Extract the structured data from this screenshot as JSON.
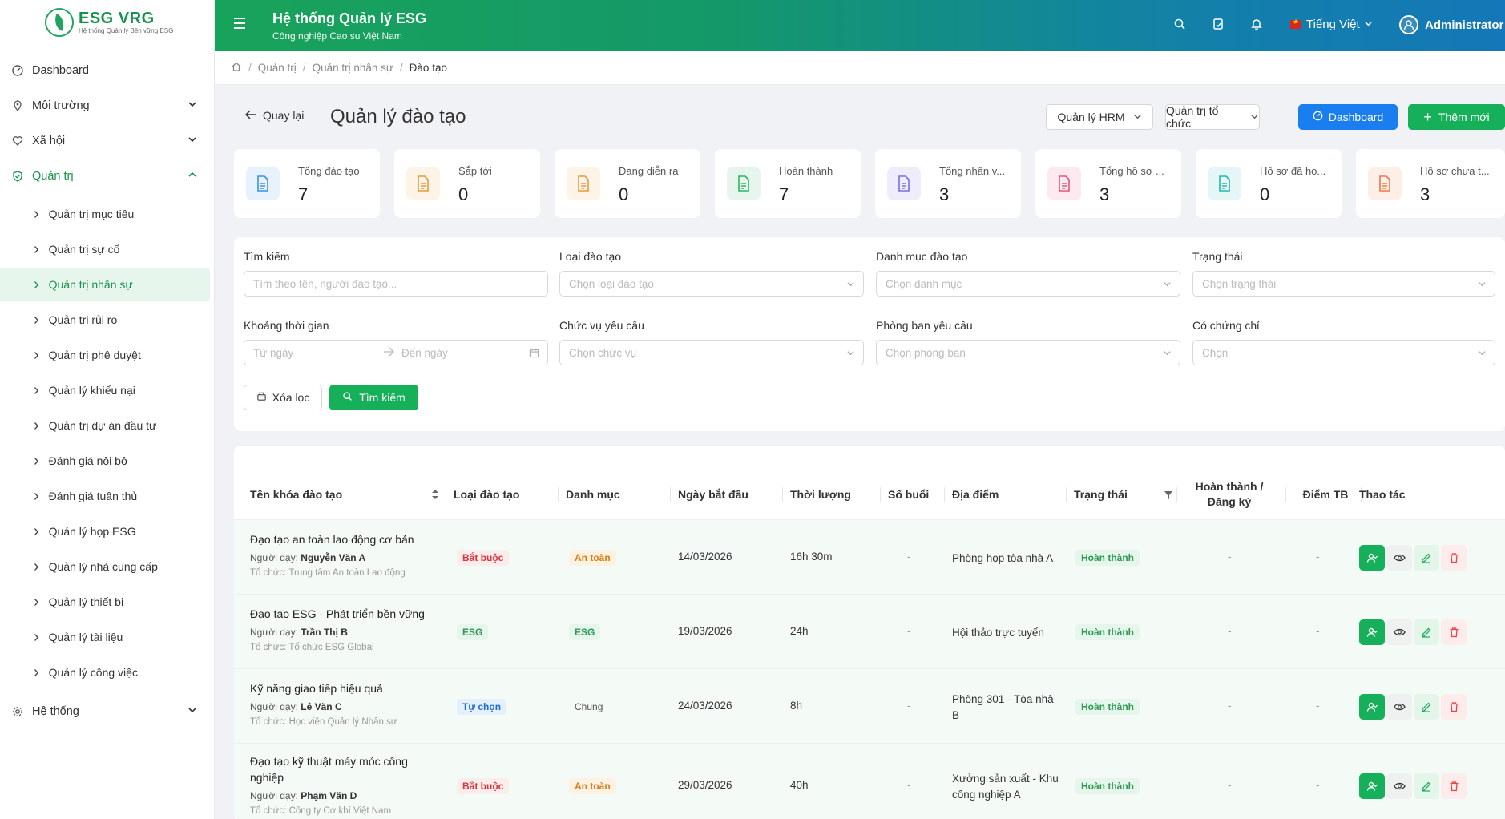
{
  "sidebar": {
    "logo_title": "ESG VRG",
    "logo_sub": "Hệ thống Quản lý Bền vững ESG",
    "top_items": [
      {
        "label": "Dashboard"
      },
      {
        "label": "Môi trường"
      },
      {
        "label": "Xã hội"
      },
      {
        "label": "Quản trị"
      },
      {
        "label": "Hệ thống"
      }
    ],
    "sub_items": [
      "Quản trị mục tiêu",
      "Quản trị sự cố",
      "Quản trị nhân sự",
      "Quản trị rủi ro",
      "Quản trị phê duyệt",
      "Quản lý khiếu nại",
      "Quản trị dự án đầu tư",
      "Đánh giá nội bộ",
      "Đánh giá tuân thủ",
      "Quản lý họp ESG",
      "Quản lý nhà cung cấp",
      "Quản lý thiết bị",
      "Quản lý tài liệu",
      "Quản lý công việc"
    ]
  },
  "header": {
    "title": "Hệ thống Quản lý ESG",
    "subtitle": "Công nghiệp Cao su Việt Nam",
    "language": "Tiếng Việt",
    "user": "Administrator"
  },
  "breadcrumb": [
    "Quản trị",
    "Quản trị nhân sự",
    "Đào tạo"
  ],
  "page": {
    "back_label": "Quay lại",
    "title": "Quản lý đào tạo",
    "btn_hrm": "Quản lý HRM",
    "btn_org": "Quản trị tổ chức",
    "btn_dashboard": "Dashboard",
    "btn_add": "Thêm mới"
  },
  "stats": [
    {
      "label": "Tổng đào tạo",
      "value": "7",
      "color": "#3b8fe8",
      "bg": "#e8f2fd"
    },
    {
      "label": "Sắp tới",
      "value": "0",
      "color": "#e89a3b",
      "bg": "#fdf3e6"
    },
    {
      "label": "Đang diễn ra",
      "value": "0",
      "color": "#e89a3b",
      "bg": "#fdf3e6"
    },
    {
      "label": "Hoàn thành",
      "value": "7",
      "color": "#2fb36a",
      "bg": "#e6f6ec"
    },
    {
      "label": "Tổng nhân v...",
      "value": "3",
      "color": "#7a6ee0",
      "bg": "#efedfc"
    },
    {
      "label": "Tổng hồ sơ ...",
      "value": "3",
      "color": "#e0577a",
      "bg": "#fdeaf0"
    },
    {
      "label": "Hồ sơ đã ho...",
      "value": "0",
      "color": "#2bb3b0",
      "bg": "#e4f6f6"
    },
    {
      "label": "Hồ sơ chưa t...",
      "value": "3",
      "color": "#ea7a4a",
      "bg": "#fdeee6"
    }
  ],
  "filters": {
    "search_label": "Tìm kiếm",
    "search_placeholder": "Tìm theo tên, người đào tạo...",
    "type_label": "Loại đào tạo",
    "type_placeholder": "Chọn loại đào tạo",
    "category_label": "Danh mục đào tạo",
    "category_placeholder": "Chọn danh mục",
    "status_label": "Trạng thái",
    "status_placeholder": "Chọn trạng thái",
    "period_label": "Khoảng thời gian",
    "from_placeholder": "Từ ngày",
    "to_placeholder": "Đến ngày",
    "position_label": "Chức vụ yêu cầu",
    "position_placeholder": "Chọn chức vụ",
    "dept_label": "Phòng ban yêu cầu",
    "dept_placeholder": "Chọn phòng ban",
    "cert_label": "Có chứng chỉ",
    "cert_placeholder": "Chọn",
    "clear_label": "Xóa lọc",
    "search_btn": "Tìm kiếm"
  },
  "table": {
    "columns": [
      "Tên khóa đào tạo",
      "Loại đào tạo",
      "Danh mục",
      "Ngày bắt đầu",
      "Thời lượng",
      "Số buổi",
      "Địa điểm",
      "Trạng thái",
      "Hoàn thành / Đăng ký",
      "Điểm TB",
      "Thao tác"
    ],
    "col_complete_1": "Hoàn thành /",
    "col_complete_2": "Đăng ký",
    "rows": [
      {
        "name": "Đạo tạo an toàn lao động cơ bản",
        "name2": "",
        "teacher_prefix": "Người dạy:",
        "teacher": "Nguyễn Văn A",
        "org": "Tổ chức: Trung tâm An toàn Lao động",
        "type": "Bắt buộc",
        "category": "An toàn",
        "start": "14/03/2026",
        "duration": "16h 30m",
        "sessions": "-",
        "location": "Phòng họp tòa nhà A",
        "location2": "",
        "status": "Hoàn thành",
        "completed": "-",
        "score": "-"
      },
      {
        "name": "Đạo tạo ESG - Phát triển bền vững",
        "name2": "",
        "teacher_prefix": "Người dạy:",
        "teacher": "Trần Thị B",
        "org": "Tổ chức: Tổ chức ESG Global",
        "type": "ESG",
        "category": "ESG",
        "start": "19/03/2026",
        "duration": "24h",
        "sessions": "-",
        "location": "Hội thảo trực tuyến",
        "location2": "",
        "status": "Hoàn thành",
        "completed": "-",
        "score": "-"
      },
      {
        "name": "Kỹ năng giao tiếp hiệu quả",
        "name2": "",
        "teacher_prefix": "Người dạy:",
        "teacher": "Lê Văn C",
        "org": "Tổ chức: Học viện Quản lý Nhân sự",
        "type": "Tự chọn",
        "category": "Chung",
        "start": "24/03/2026",
        "duration": "8h",
        "sessions": "-",
        "location": "Phòng 301 - Tòa nhà",
        "location2": "B",
        "status": "Hoàn thành",
        "completed": "-",
        "score": "-"
      },
      {
        "name": "Đạo tạo kỹ thuật máy móc công",
        "name2": "nghiệp",
        "teacher_prefix": "Người dạy:",
        "teacher": "Phạm Văn D",
        "org": "Tổ chức: Công ty Cơ khí Việt Nam",
        "type": "Bắt buộc",
        "category": "An toàn",
        "start": "29/03/2026",
        "duration": "40h",
        "sessions": "-",
        "location": "Xưởng sản xuất - Khu",
        "location2": "công nghiệp A",
        "status": "Hoàn thành",
        "completed": "-",
        "score": "-"
      }
    ]
  },
  "colors": {
    "brand_green": "#17924f",
    "primary_blue": "#1a7ef0",
    "tag_required_text": "#d9363e",
    "tag_required_bg": "#fdecec",
    "tag_esg_text": "#2f9a52",
    "tag_esg_bg": "#e6f6ec",
    "tag_optional_text": "#1a6ed8",
    "tag_optional_bg": "#e6f0fc",
    "tag_safety_text": "#d97a14",
    "tag_safety_bg": "#fdf2e2",
    "tag_general_text": "#555555",
    "status_done_text": "#2f9a52",
    "status_done_bg": "#e6f6ec"
  }
}
